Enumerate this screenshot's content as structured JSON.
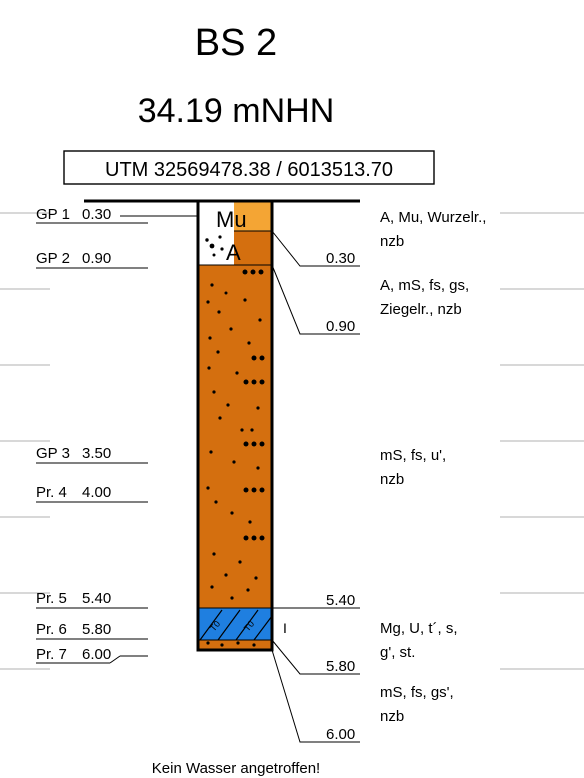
{
  "log": {
    "title": "BS 2",
    "elevation": "34.19 mNHN",
    "coordinates": "UTM 32569478.38 / 6013513.70",
    "footer": "Kein Wasser angetroffen!"
  },
  "samples": [
    {
      "label": "GP 1",
      "depth": "0.30"
    },
    {
      "label": "GP 2",
      "depth": "0.90"
    },
    {
      "label": "GP 3",
      "depth": "3.50"
    },
    {
      "label": "Pr. 4",
      "depth": "4.00"
    },
    {
      "label": "Pr. 5",
      "depth": "5.40"
    },
    {
      "label": "Pr. 6",
      "depth": "5.80"
    },
    {
      "label": "Pr. 7",
      "depth": "6.00"
    }
  ],
  "layer_depths": [
    "0.30",
    "0.90",
    "5.40",
    "5.80",
    "6.00"
  ],
  "layers": [
    {
      "from": 0.0,
      "to": 0.3,
      "symbol": "Mu",
      "color": "#f4a534"
    },
    {
      "from": 0.3,
      "to": 0.9,
      "symbol": "A",
      "color": "#d46f0f"
    },
    {
      "from": 0.9,
      "to": 5.4,
      "symbol": "",
      "color": "#d46f0f"
    },
    {
      "from": 5.4,
      "to": 5.8,
      "symbol": "",
      "color": "#1f7fe0"
    },
    {
      "from": 5.8,
      "to": 6.0,
      "symbol": "",
      "color": "#d46f0f"
    }
  ],
  "descriptions": [
    {
      "line1": "A, Mu, Wurzelr.,",
      "line2": "nzb"
    },
    {
      "line1": "A, mS, fs, gs,",
      "line2": "Ziegelr., nzb"
    },
    {
      "line1": "mS, fs, u',",
      "line2": "nzb"
    },
    {
      "line1": "Mg, U, t´, s,",
      "line2": "g', st."
    },
    {
      "line1": "mS, fs, gs',",
      "line2": "nzb"
    }
  ],
  "consistency_mark": "I",
  "colors": {
    "fill_primary": "#d46f0f",
    "fill_humus": "#f4a534",
    "fill_clay": "#1f7fe0",
    "outline": "#000000"
  }
}
